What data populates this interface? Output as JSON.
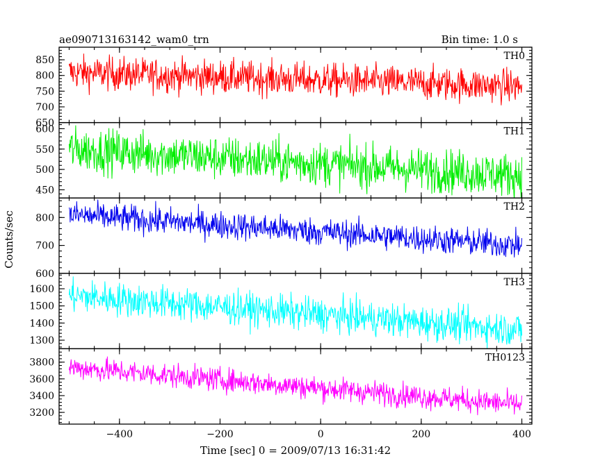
{
  "chart_data": {
    "type": "line",
    "title": "ae090713163142_wam0_trn",
    "bin_time_label": "Bin time: 1.0 s",
    "xlabel": "Time [sec] 0 = 2009/07/13 16:31:42",
    "ylabel": "Counts/sec",
    "xlim": [
      -520,
      420
    ],
    "x_start": -500,
    "x_end": 400,
    "x_step": 1,
    "x_ticks": [
      "−400",
      "−200",
      "0",
      "200",
      "400"
    ],
    "x_tick_values": [
      -400,
      -200,
      0,
      200,
      400
    ],
    "grid": false,
    "series": [
      {
        "name": "TH0",
        "color": "#ff0000",
        "ylim": [
          650,
          890
        ],
        "start": 810,
        "end": 765,
        "noise": 30,
        "y_ticks": [
          "650",
          "700",
          "750",
          "800",
          "850"
        ],
        "y_tick_values": [
          650,
          700,
          750,
          800,
          850
        ]
      },
      {
        "name": "TH1",
        "color": "#00ee00",
        "ylim": [
          430,
          615
        ],
        "start": 550,
        "end": 485,
        "noise": 30,
        "y_ticks": [
          "450",
          "500",
          "550",
          "600"
        ],
        "y_tick_values": [
          450,
          500,
          550,
          600
        ]
      },
      {
        "name": "TH2",
        "color": "#0000ee",
        "ylim": [
          600,
          870
        ],
        "start": 810,
        "end": 700,
        "noise": 28,
        "y_ticks": [
          "600",
          "700",
          "800"
        ],
        "y_tick_values": [
          600,
          700,
          800
        ]
      },
      {
        "name": "TH3",
        "color": "#00ffff",
        "ylim": [
          1250,
          1690
        ],
        "start": 1560,
        "end": 1360,
        "noise": 55,
        "y_ticks": [
          "1300",
          "1400",
          "1500",
          "1600"
        ],
        "y_tick_values": [
          1300,
          1400,
          1500,
          1600
        ]
      },
      {
        "name": "TH0123",
        "color": "#ff00ff",
        "ylim": [
          3060,
          3960
        ],
        "start": 3740,
        "end": 3290,
        "noise": 80,
        "y_ticks": [
          "3200",
          "3400",
          "3600",
          "3800"
        ],
        "y_tick_values": [
          3200,
          3400,
          3600,
          3800
        ]
      }
    ]
  }
}
